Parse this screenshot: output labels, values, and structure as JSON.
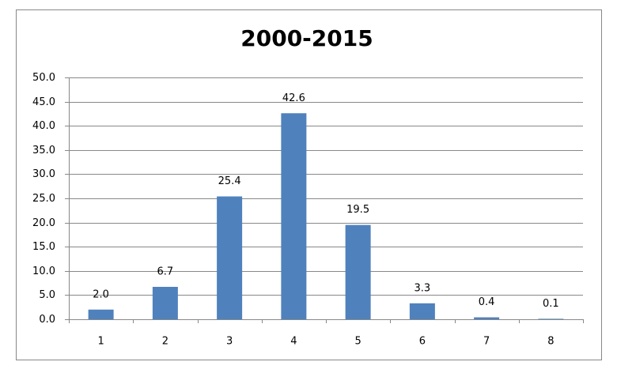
{
  "chart_data": {
    "type": "bar",
    "title": "2000-2015",
    "categories": [
      "1",
      "2",
      "3",
      "4",
      "5",
      "6",
      "7",
      "8"
    ],
    "values": [
      2.0,
      6.7,
      25.4,
      42.6,
      19.5,
      3.3,
      0.4,
      0.1
    ],
    "value_labels": [
      "2.0",
      "6.7",
      "25.4",
      "42.6",
      "19.5",
      "3.3",
      "0.4",
      "0.1"
    ],
    "color": "#4f81bd",
    "ylim": [
      0,
      50
    ],
    "yticks": [
      {
        "value": 0,
        "label": "0.0"
      },
      {
        "value": 5,
        "label": "5.0"
      },
      {
        "value": 10,
        "label": "10.0"
      },
      {
        "value": 15,
        "label": "15.0"
      },
      {
        "value": 20,
        "label": "20.0"
      },
      {
        "value": 25,
        "label": "25.0"
      },
      {
        "value": 30,
        "label": "30.0"
      },
      {
        "value": 35,
        "label": "35.0"
      },
      {
        "value": 40,
        "label": "40.0"
      },
      {
        "value": 45,
        "label": "45.0"
      },
      {
        "value": 50,
        "label": "50.0"
      }
    ],
    "grid": true
  }
}
